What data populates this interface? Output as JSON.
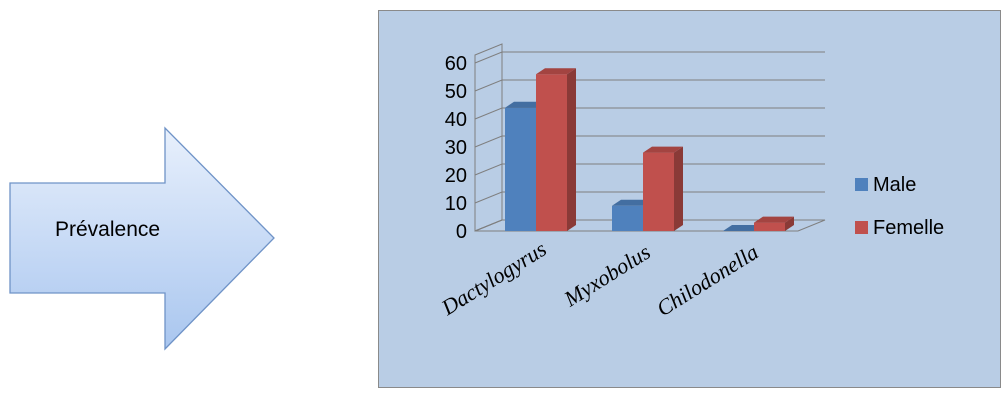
{
  "arrow": {
    "label": "Prévalence",
    "colors": {
      "fill_top": "#e8f0fc",
      "fill_bottom": "#a9c6ef",
      "stroke": "#6f93c7"
    }
  },
  "chart_data": {
    "type": "bar",
    "style": "3d-clustered-column",
    "categories": [
      "Dactylogyrus",
      "Myxobolus",
      "Chilodonella"
    ],
    "series": [
      {
        "name": "Male",
        "values": [
          44,
          9,
          0
        ],
        "color": "#4f81bd"
      },
      {
        "name": "Femelle",
        "values": [
          56,
          28,
          3
        ],
        "color": "#c0504d"
      }
    ],
    "yticks": [
      0,
      10,
      20,
      30,
      40,
      50,
      60
    ],
    "ylim": [
      0,
      60
    ],
    "grid": true,
    "legend": "right",
    "background": "#b9cde5"
  }
}
